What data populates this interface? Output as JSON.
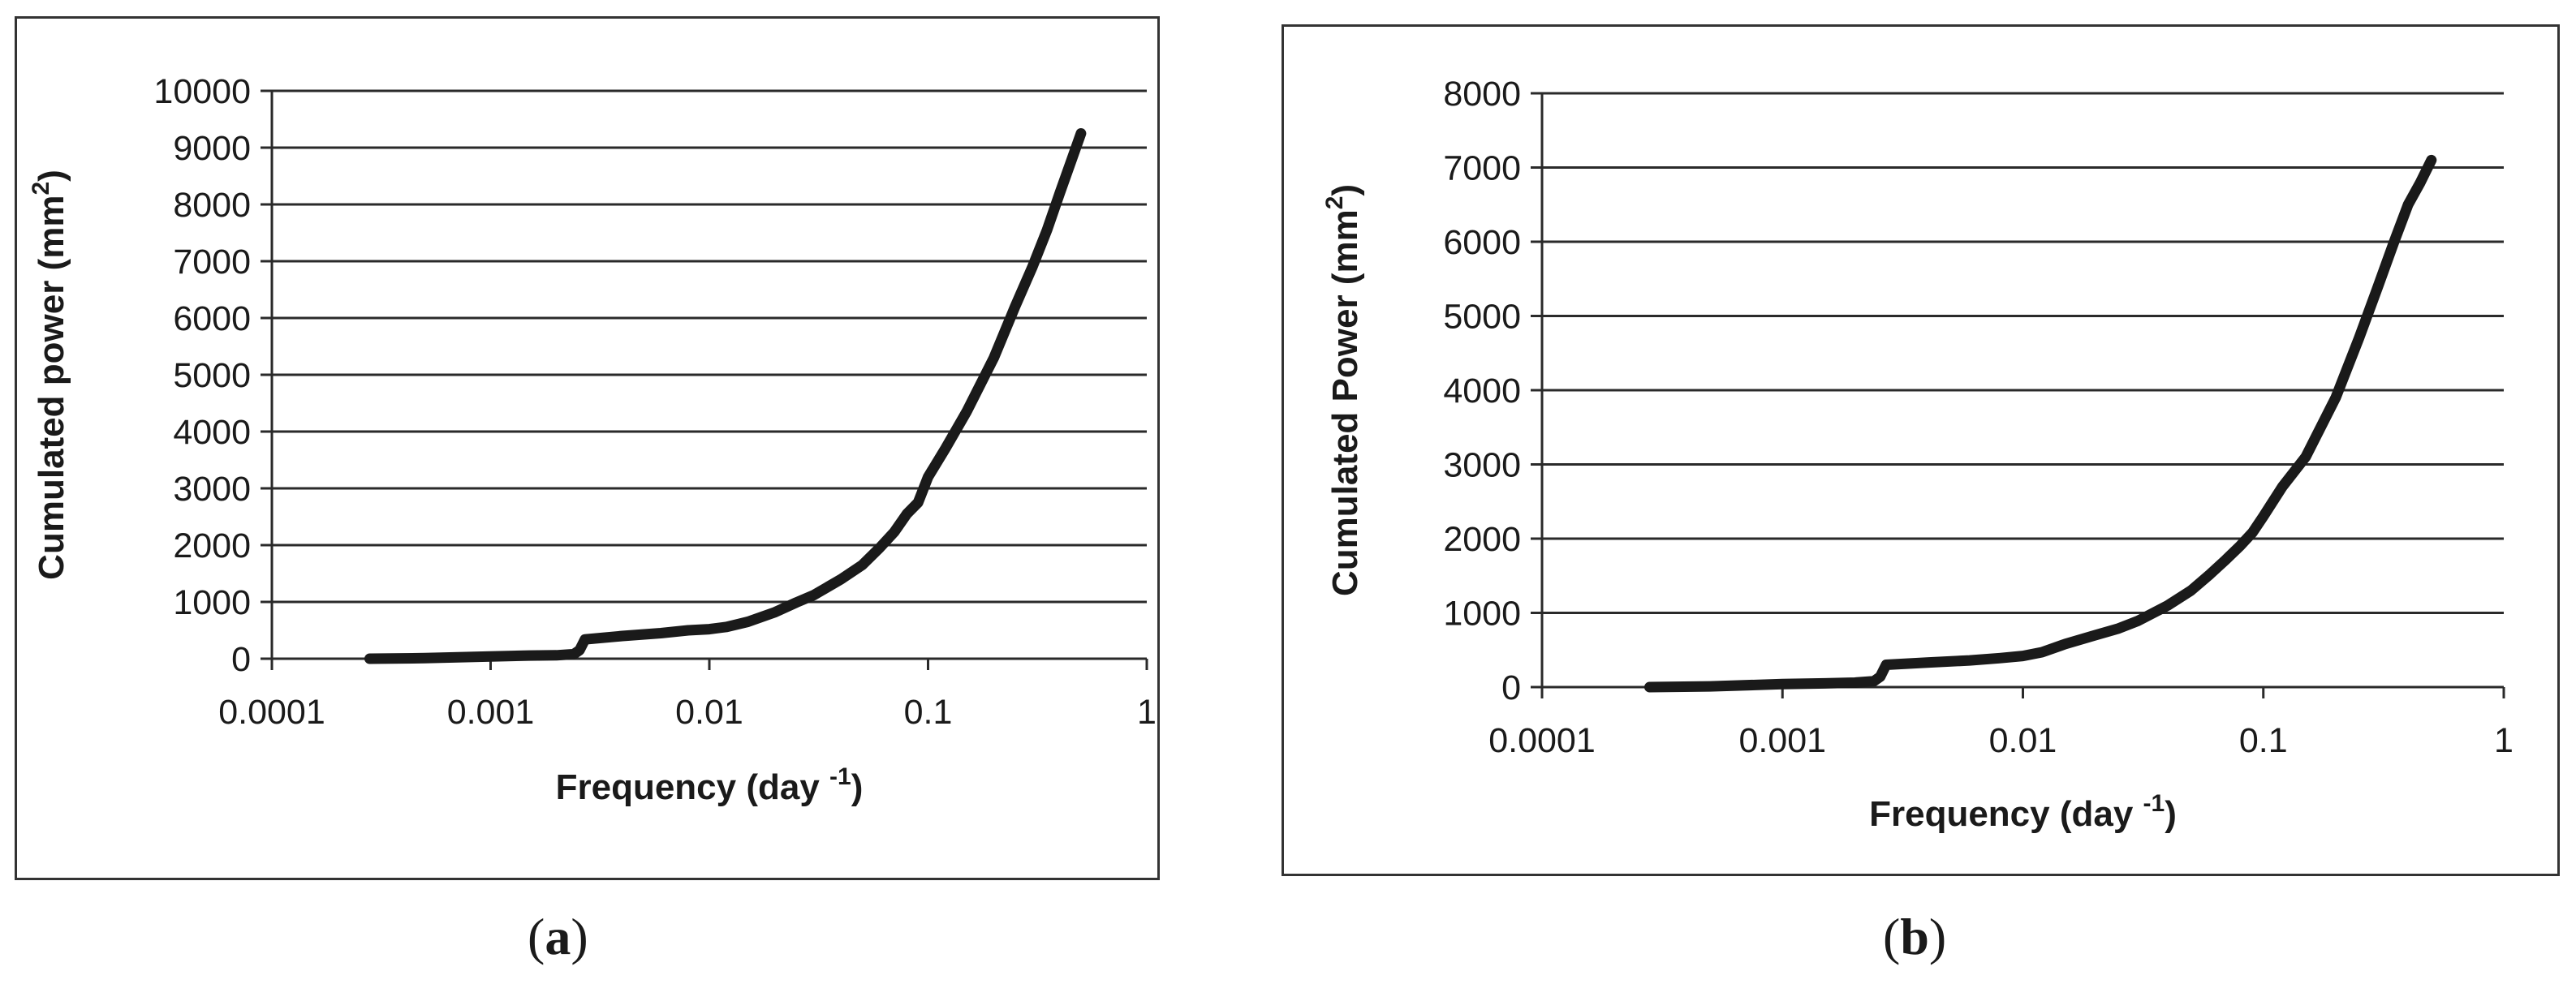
{
  "chart_data": [
    {
      "type": "line",
      "panel_label": "a",
      "xlabel": "Frequency (day",
      "xlabel_superscript": "-1",
      "xlabel_close": ")",
      "ylabel": "Cumulated power (mm",
      "ylabel_superscript": "2",
      "ylabel_close": ")",
      "x_scale": "log",
      "xlim": [
        0.0001,
        1
      ],
      "ylim": [
        0,
        10000
      ],
      "x_ticks": [
        "0.0001",
        "0.001",
        "0.01",
        "0.1",
        "1"
      ],
      "y_ticks": [
        "0",
        "1000",
        "2000",
        "3000",
        "4000",
        "5000",
        "6000",
        "7000",
        "8000",
        "9000",
        "10000"
      ],
      "grid": "horizontal",
      "line_color": "#1a1a1a",
      "series": [
        {
          "x": [
            0.00028,
            0.0005,
            0.001,
            0.0015,
            0.002,
            0.0024,
            0.00255,
            0.0027,
            0.004,
            0.006,
            0.008,
            0.01,
            0.012,
            0.015,
            0.02,
            0.025,
            0.03,
            0.04,
            0.05,
            0.06,
            0.07,
            0.08,
            0.09,
            0.1,
            0.12,
            0.15,
            0.2,
            0.25,
            0.3,
            0.35,
            0.4,
            0.45,
            0.5
          ],
          "y": [
            0,
            10,
            40,
            55,
            60,
            80,
            150,
            340,
            400,
            450,
            500,
            520,
            560,
            650,
            820,
            990,
            1120,
            1400,
            1650,
            1950,
            2230,
            2550,
            2750,
            3200,
            3700,
            4350,
            5300,
            6200,
            6900,
            7550,
            8200,
            8750,
            9250
          ]
        }
      ]
    },
    {
      "type": "line",
      "panel_label": "b",
      "xlabel": "Frequency (day",
      "xlabel_superscript": "-1",
      "xlabel_close": ")",
      "ylabel": "Cumulated Power (mm",
      "ylabel_superscript": "2",
      "ylabel_close": ")",
      "x_scale": "log",
      "xlim": [
        0.0001,
        1
      ],
      "ylim": [
        0,
        8000
      ],
      "x_ticks": [
        "0.0001",
        "0.001",
        "0.01",
        "0.1",
        "1"
      ],
      "y_ticks": [
        "0",
        "1000",
        "2000",
        "3000",
        "4000",
        "5000",
        "6000",
        "7000",
        "8000"
      ],
      "grid": "horizontal",
      "line_color": "#1a1a1a",
      "series": [
        {
          "x": [
            0.00028,
            0.0005,
            0.001,
            0.0015,
            0.002,
            0.0024,
            0.00255,
            0.0027,
            0.004,
            0.006,
            0.008,
            0.01,
            0.012,
            0.015,
            0.02,
            0.025,
            0.03,
            0.04,
            0.05,
            0.06,
            0.07,
            0.08,
            0.09,
            0.1,
            0.12,
            0.15,
            0.2,
            0.25,
            0.3,
            0.35,
            0.4,
            0.45,
            0.5
          ],
          "y": [
            0,
            10,
            40,
            50,
            60,
            80,
            140,
            300,
            330,
            360,
            390,
            420,
            470,
            580,
            700,
            790,
            890,
            1100,
            1300,
            1520,
            1720,
            1900,
            2080,
            2300,
            2700,
            3100,
            3900,
            4700,
            5400,
            6000,
            6500,
            6800,
            7100
          ]
        }
      ]
    }
  ],
  "captions": {
    "a": {
      "open": "(",
      "letter": "a",
      "close": ")"
    },
    "b": {
      "open": "(",
      "letter": "b",
      "close": ")"
    }
  }
}
